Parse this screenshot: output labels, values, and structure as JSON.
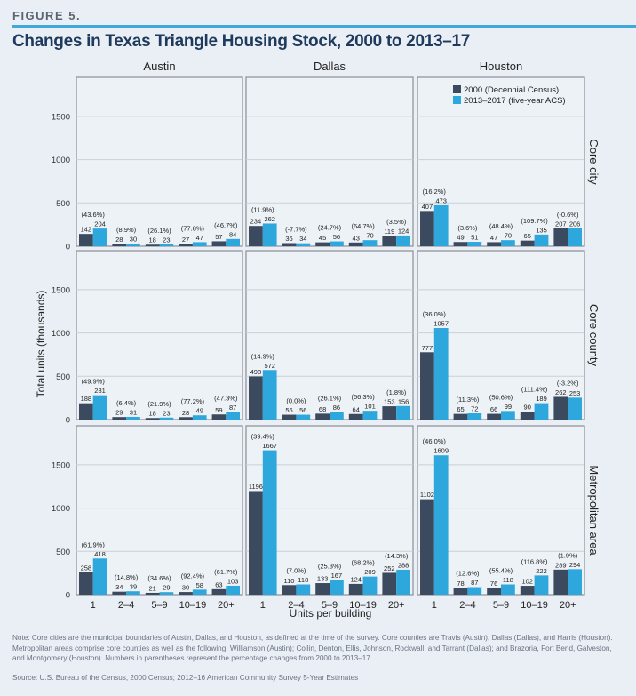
{
  "header": {
    "figure_label": "FIGURE 5.",
    "title": "Changes in Texas Triangle Housing Stock, 2000 to 2013–17"
  },
  "chart_data": {
    "type": "bar",
    "layout": "small-multiples grid (3 rows x 3 columns), grouped bars",
    "columns": [
      "Austin",
      "Dallas",
      "Houston"
    ],
    "rows": [
      "Core city",
      "Core county",
      "Metropolitan area"
    ],
    "categories": [
      "1",
      "2–4",
      "5–9",
      "10–19",
      "20+"
    ],
    "xlabel": "Units per building",
    "ylabel": "Total units (thousands)",
    "ylim": [
      0,
      1950
    ],
    "yticks": [
      0,
      500,
      1000,
      1500
    ],
    "grid": true,
    "legend_placement": "top-right panel, upper right",
    "series_names": [
      "2000 (Decennial Census)",
      "2013–2017 (five-year ACS)"
    ],
    "colors": {
      "series_2000": "#3b4a5e",
      "series_2013_17": "#2ea7dd"
    },
    "panels": [
      {
        "row": "Core city",
        "column": "Austin",
        "s2000": [
          142,
          28,
          18,
          27,
          57
        ],
        "s2013_17": [
          204,
          30,
          23,
          47,
          84
        ],
        "pct": [
          "(43.6%)",
          "(8.9%)",
          "(26.1%)",
          "(77.8%)",
          "(46.7%)"
        ]
      },
      {
        "row": "Core city",
        "column": "Dallas",
        "s2000": [
          234,
          36,
          45,
          43,
          119
        ],
        "s2013_17": [
          262,
          34,
          56,
          70,
          124
        ],
        "pct": [
          "(11.9%)",
          "(-7.7%)",
          "(24.7%)",
          "(64.7%)",
          "(3.5%)"
        ]
      },
      {
        "row": "Core city",
        "column": "Houston",
        "s2000": [
          407,
          49,
          47,
          65,
          207
        ],
        "s2013_17": [
          473,
          51,
          70,
          135,
          206
        ],
        "pct": [
          "(16.2%)",
          "(3.6%)",
          "(48.4%)",
          "(109.7%)",
          "(-0.6%)"
        ]
      },
      {
        "row": "Core county",
        "column": "Austin",
        "s2000": [
          188,
          29,
          18,
          28,
          59
        ],
        "s2013_17": [
          281,
          31,
          23,
          49,
          87
        ],
        "pct": [
          "(49.9%)",
          "(6.4%)",
          "(21.9%)",
          "(77.2%)",
          "(47.3%)"
        ]
      },
      {
        "row": "Core county",
        "column": "Dallas",
        "s2000": [
          498,
          56,
          68,
          64,
          153
        ],
        "s2013_17": [
          572,
          56,
          86,
          101,
          156
        ],
        "pct": [
          "(14.9%)",
          "(0.0%)",
          "(26.1%)",
          "(56.3%)",
          "(1.8%)"
        ]
      },
      {
        "row": "Core county",
        "column": "Houston",
        "s2000": [
          777,
          65,
          66,
          90,
          262
        ],
        "s2013_17": [
          1057,
          72,
          99,
          189,
          253
        ],
        "pct": [
          "(36.0%)",
          "(11.3%)",
          "(50.6%)",
          "(111.4%)",
          "(-3.2%)"
        ]
      },
      {
        "row": "Metropolitan area",
        "column": "Austin",
        "s2000": [
          258,
          34,
          21,
          30,
          63
        ],
        "s2013_17": [
          418,
          39,
          29,
          58,
          103
        ],
        "pct": [
          "(61.9%)",
          "(14.8%)",
          "(34.6%)",
          "(92.4%)",
          "(61.7%)"
        ]
      },
      {
        "row": "Metropolitan area",
        "column": "Dallas",
        "s2000": [
          1196,
          110,
          133,
          124,
          252
        ],
        "s2013_17": [
          1667,
          118,
          167,
          209,
          288
        ],
        "pct": [
          "(39.4%)",
          "(7.0%)",
          "(25.3%)",
          "(68.2%)",
          "(14.3%)"
        ]
      },
      {
        "row": "Metropolitan area",
        "column": "Houston",
        "s2000": [
          1102,
          78,
          76,
          102,
          289
        ],
        "s2013_17": [
          1609,
          87,
          118,
          222,
          294
        ],
        "pct": [
          "(46.0%)",
          "(12.6%)",
          "(55.4%)",
          "(116.8%)",
          "(1.9%)"
        ]
      }
    ]
  },
  "notes": {
    "note": "Note: Core cities are the municipal boundaries of Austin, Dallas, and Houston, as defined at the time of the survey. Core counties are Travis (Austin), Dallas (Dallas), and Harris (Houston). Metropolitan areas comprise core counties as well as the following: Williamson (Austin); Collin, Denton, Ellis, Johnson, Rockwall, and Tarrant (Dallas); and Brazoria, Fort Bend, Galveston, and Montgomery (Houston). Numbers in parentheses represent the percentage changes from 2000 to  2013–17.",
    "source": "Source: U.S. Bureau of the Census, 2000 Census; 2012–16 American Community Survey 5-Year Estimates"
  }
}
